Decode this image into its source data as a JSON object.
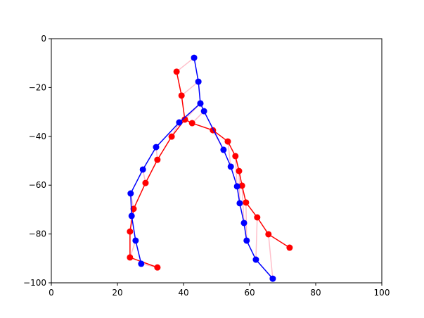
{
  "chart_data": {
    "type": "line",
    "xlim": [
      0,
      100
    ],
    "ylim": [
      -100,
      0
    ],
    "xticks": [
      0,
      20,
      40,
      60,
      80,
      100
    ],
    "yticks": [
      {
        "value": -100,
        "label": "−100"
      },
      {
        "value": -80,
        "label": "−80"
      },
      {
        "value": -60,
        "label": "−60"
      },
      {
        "value": -40,
        "label": "−40"
      },
      {
        "value": -20,
        "label": "−20"
      },
      0
    ],
    "connector_color": "pink",
    "series": [
      {
        "color": "#ff0000",
        "x": [
          37.9,
          39.4,
          40.4,
          36.4,
          32.1,
          28.5,
          24.9,
          23.8,
          23.8,
          32.1,
          null,
          40.4,
          42.6,
          48.9,
          53.4,
          55.7,
          56.8,
          57.7,
          58.9,
          62.3,
          65.7,
          72.1
        ],
        "values": [
          -13.5,
          -23.3,
          -33.1,
          -40.1,
          -49.6,
          -59.1,
          -69.7,
          -79.0,
          -89.6,
          -93.7,
          null,
          -33.1,
          -34.6,
          -37.5,
          -42.1,
          -48.1,
          -54.2,
          -60.2,
          -67.1,
          -73.2,
          -80.1,
          -85.6
        ]
      },
      {
        "color": "#0000ff",
        "x": [
          43.2,
          44.5,
          45.1,
          38.7,
          31.7,
          27.7,
          24.0,
          24.3,
          25.5,
          27.2,
          null,
          45.1,
          46.2,
          52.1,
          54.3,
          56.2,
          57.0,
          58.3,
          59.1,
          61.9,
          67.0
        ],
        "values": [
          -7.8,
          -17.6,
          -26.5,
          -34.3,
          -44.4,
          -53.6,
          -63.4,
          -72.6,
          -82.7,
          -92.2,
          null,
          -26.5,
          -29.7,
          -45.5,
          -52.4,
          -60.5,
          -67.4,
          -75.5,
          -82.7,
          -90.5,
          -98.3
        ]
      }
    ]
  }
}
